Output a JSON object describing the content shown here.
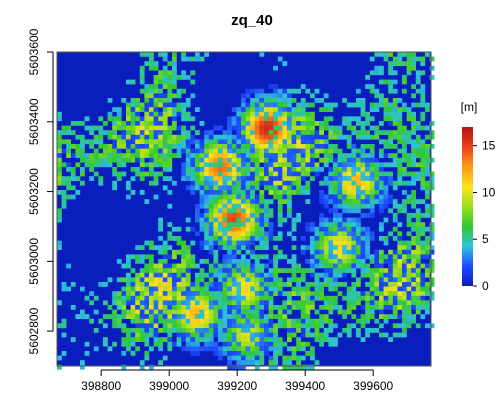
{
  "chart_data": {
    "type": "heatmap",
    "title": "zq_40",
    "legend_unit": "[m]",
    "x_range": [
      398670,
      399770
    ],
    "y_range": [
      5602700,
      5603600
    ],
    "x_ticks": [
      398800,
      399000,
      399200,
      399400,
      399600
    ],
    "x_tick_labels": [
      "398800",
      "399000",
      "399200",
      "399400",
      "399600"
    ],
    "y_ticks": [
      5602800,
      5603000,
      5603200,
      5603400,
      5603600
    ],
    "y_tick_labels": [
      "5602800",
      "5603000",
      "5603200",
      "5603400",
      "5603600"
    ],
    "color_scale": {
      "min": 0,
      "max": 17,
      "ticks": [
        0,
        5,
        10,
        15
      ],
      "tick_labels": [
        "0",
        "5",
        "10",
        "15"
      ],
      "colors": [
        "#0a1ebe",
        "#1e4cff",
        "#2fc3d9",
        "#30c830",
        "#9be01e",
        "#ffe11e",
        "#ff9a14",
        "#e8401a",
        "#b41414"
      ]
    },
    "hotspots": [
      {
        "x": 399290,
        "y": 5603380,
        "value": 16
      },
      {
        "x": 399150,
        "y": 5603270,
        "value": 14
      },
      {
        "x": 399190,
        "y": 5603120,
        "value": 15
      },
      {
        "x": 399550,
        "y": 5603230,
        "value": 12
      },
      {
        "x": 399500,
        "y": 5603040,
        "value": 11
      },
      {
        "x": 399080,
        "y": 5602850,
        "value": 12
      },
      {
        "x": 399220,
        "y": 5602920,
        "value": 11
      },
      {
        "x": 399230,
        "y": 5602790,
        "value": 10
      }
    ]
  }
}
